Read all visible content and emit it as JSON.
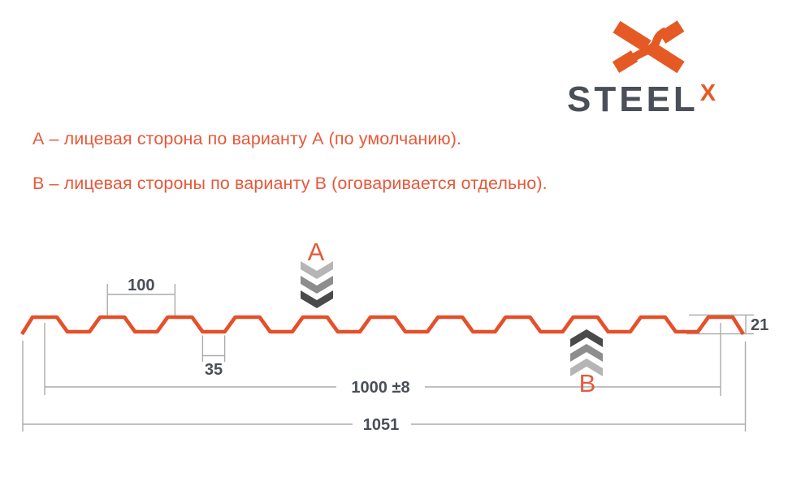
{
  "logo": {
    "brand": "STEEL",
    "brand_sup": "X"
  },
  "notes": {
    "line_a": "А – лицевая сторона по варианту А (по умолчанию).",
    "line_b": "В – лицевая стороны по варианту В (оговаривается отдельно)."
  },
  "diagram": {
    "markers": {
      "a": "А",
      "b": "В"
    },
    "dimensions": {
      "rib_pitch": "100",
      "valley_width": "35",
      "working_width": "1000 ±8",
      "overall_width": "1051",
      "profile_height": "21"
    }
  },
  "colors": {
    "profile_stroke": "#E5502A",
    "accent_text": "#E7583A",
    "logo_orange": "#E55A24",
    "dark_text": "#4A4E57",
    "brand_text": "#4B4F57",
    "dim_line": "#ABABAB",
    "chevron_light": "#B5B5B5",
    "chevron_mid": "#8D8D8D",
    "chevron_dark": "#4A4A4A"
  }
}
